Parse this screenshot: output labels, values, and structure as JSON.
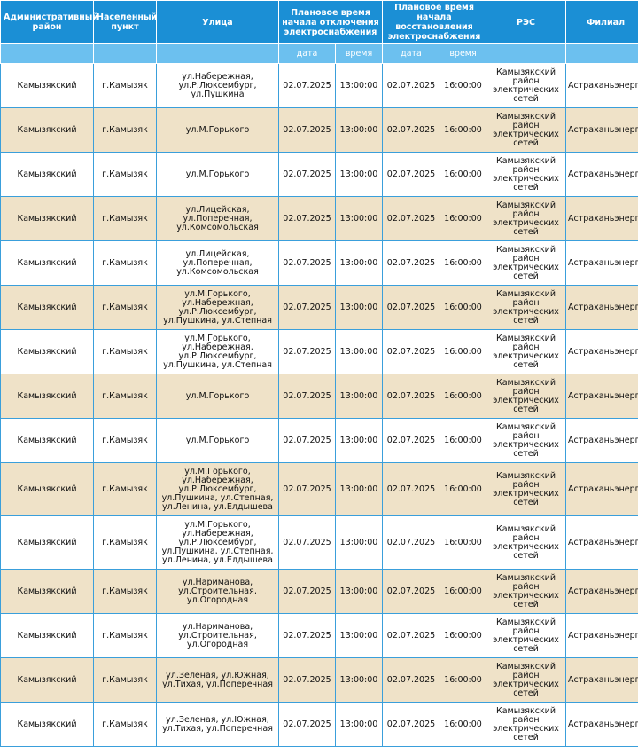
{
  "table": {
    "header": [
      "Административный район",
      "Населенный пункт",
      "Улица",
      "Плановое время начала отключения электроснабжения",
      "Плановое время начала восстановления электроснабжения",
      "РЭС",
      "Филиал"
    ],
    "subheader": [
      "дата",
      "время",
      "дата",
      "время"
    ],
    "rows": [
      [
        "Камызякский",
        "г.Камызяк",
        "ул.Набережная,\nул.Р.Люксембург,\nул.Пушкина",
        "02.07.2025",
        "13:00:00",
        "02.07.2025",
        "16:00:00",
        "Камызякский район электрических сетей",
        "Астраханьэнерго"
      ],
      [
        "Камызякский",
        "г.Камызяк",
        "ул.М.Горького",
        "02.07.2025",
        "13:00:00",
        "02.07.2025",
        "16:00:00",
        "Камызякский район электрических сетей",
        "Астраханьэнерго"
      ],
      [
        "Камызякский",
        "г.Камызяк",
        "ул.М.Горького",
        "02.07.2025",
        "13:00:00",
        "02.07.2025",
        "16:00:00",
        "Камызякский район электрических сетей",
        "Астраханьэнерго"
      ],
      [
        "Камызякский",
        "г.Камызяк",
        "ул.Лицейская,\nул.Поперечная,\nул.Комсомольская",
        "02.07.2025",
        "13:00:00",
        "02.07.2025",
        "16:00:00",
        "Камызякский район электрических сетей",
        "Астраханьэнерго"
      ],
      [
        "Камызякский",
        "г.Камызяк",
        "ул.Лицейская,\nул.Поперечная,\nул.Комсомольская",
        "02.07.2025",
        "13:00:00",
        "02.07.2025",
        "16:00:00",
        "Камызякский район электрических сетей",
        "Астраханьэнерго"
      ],
      [
        "Камызякский",
        "г.Камызяк",
        "ул.М.Горького,\nул.Набережная,\nул.Р.Люксембург,\nул.Пушкина, ул.Степная",
        "02.07.2025",
        "13:00:00",
        "02.07.2025",
        "16:00:00",
        "Камызякский район электрических сетей",
        "Астраханьэнерго"
      ],
      [
        "Камызякский",
        "г.Камызяк",
        "ул.М.Горького,\nул.Набережная,\nул.Р.Люксембург,\nул.Пушкина, ул.Степная",
        "02.07.2025",
        "13:00:00",
        "02.07.2025",
        "16:00:00",
        "Камызякский район электрических сетей",
        "Астраханьэнерго"
      ],
      [
        "Камызякский",
        "г.Камызяк",
        "ул.М.Горького",
        "02.07.2025",
        "13:00:00",
        "02.07.2025",
        "16:00:00",
        "Камызякский район электрических сетей",
        "Астраханьэнерго"
      ],
      [
        "Камызякский",
        "г.Камызяк",
        "ул.М.Горького",
        "02.07.2025",
        "13:00:00",
        "02.07.2025",
        "16:00:00",
        "Камызякский район электрических сетей",
        "Астраханьэнерго"
      ],
      [
        "Камызякский",
        "г.Камызяк",
        "ул.М.Горького,\nул.Набережная,\nул.Р.Люксембург,\nул.Пушкина, ул.Степная,\nул.Ленина, ул.Елдышева",
        "02.07.2025",
        "13:00:00",
        "02.07.2025",
        "16:00:00",
        "Камызякский район электрических сетей",
        "Астраханьэнерго"
      ],
      [
        "Камызякский",
        "г.Камызяк",
        "ул.М.Горького,\nул.Набережная,\nул.Р.Люксембург,\nул.Пушкина, ул.Степная,\nул.Ленина, ул.Елдышева",
        "02.07.2025",
        "13:00:00",
        "02.07.2025",
        "16:00:00",
        "Камызякский район электрических сетей",
        "Астраханьэнерго"
      ],
      [
        "Камызякский",
        "г.Камызяк",
        "ул.Нариманова,\nул.Строительная,\nул.Огородная",
        "02.07.2025",
        "13:00:00",
        "02.07.2025",
        "16:00:00",
        "Камызякский район электрических сетей",
        "Астраханьэнерго"
      ],
      [
        "Камызякский",
        "г.Камызяк",
        "ул.Нариманова,\nул.Строительная,\nул.Огородная",
        "02.07.2025",
        "13:00:00",
        "02.07.2025",
        "16:00:00",
        "Камызякский район электрических сетей",
        "Астраханьэнерго"
      ],
      [
        "Камызякский",
        "г.Камызяк",
        "ул.Зеленая, ул.Южная,\nул.Тихая, ул.Поперечная",
        "02.07.2025",
        "13:00:00",
        "02.07.2025",
        "16:00:00",
        "Камызякский район электрических сетей",
        "Астраханьэнерго"
      ],
      [
        "Камызякский",
        "г.Камызяк",
        "ул.Зеленая, ул.Южная,\nул.Тихая, ул.Поперечная",
        "02.07.2025",
        "13:00:00",
        "02.07.2025",
        "16:00:00",
        "Камызякский район электрических сетей",
        "Астраханьэнерго"
      ]
    ]
  }
}
